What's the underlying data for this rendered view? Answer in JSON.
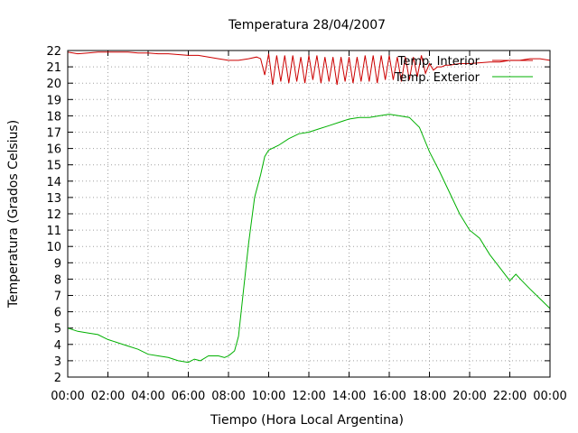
{
  "chart_data": {
    "type": "line",
    "title": "Temperatura 28/04/2007",
    "xlabel": "Tiempo (Hora Local Argentina)",
    "ylabel": "Temperatura (Grados Celsius)",
    "ylim": [
      2,
      22
    ],
    "xlim": [
      0,
      24
    ],
    "x_ticks": [
      "00:00",
      "02:00",
      "04:00",
      "06:00",
      "08:00",
      "10:00",
      "12:00",
      "14:00",
      "16:00",
      "18:00",
      "20:00",
      "22:00",
      "00:00"
    ],
    "y_ticks": [
      2,
      3,
      4,
      5,
      6,
      7,
      8,
      9,
      10,
      11,
      12,
      13,
      14,
      15,
      16,
      17,
      18,
      19,
      20,
      21,
      22
    ],
    "grid": true,
    "legend_position": "top-right",
    "series": [
      {
        "name": "Temp. Interior",
        "color": "#cc0000",
        "x": [
          0,
          0.5,
          1,
          1.5,
          2,
          2.5,
          3,
          3.5,
          4,
          4.5,
          5,
          5.5,
          6,
          6.5,
          7,
          7.5,
          8,
          8.5,
          9,
          9.4,
          9.6,
          9.8,
          10.0,
          10.2,
          10.4,
          10.6,
          10.8,
          11.0,
          11.2,
          11.4,
          11.6,
          11.8,
          12.0,
          12.2,
          12.4,
          12.6,
          12.8,
          13.0,
          13.2,
          13.4,
          13.6,
          13.8,
          14.0,
          14.2,
          14.4,
          14.6,
          14.8,
          15.0,
          15.2,
          15.4,
          15.6,
          15.8,
          16.0,
          16.2,
          16.4,
          16.6,
          16.8,
          17.0,
          17.2,
          17.4,
          17.6,
          17.8,
          18.0,
          18.2,
          18.4,
          18.6,
          18.8,
          19.0,
          19.5,
          20,
          20.5,
          21,
          21.5,
          22,
          22.5,
          23,
          23.5,
          24
        ],
        "y": [
          21.9,
          21.8,
          21.85,
          21.9,
          21.9,
          21.9,
          21.9,
          21.85,
          21.85,
          21.8,
          21.8,
          21.75,
          21.7,
          21.7,
          21.6,
          21.5,
          21.4,
          21.4,
          21.5,
          21.6,
          21.5,
          20.5,
          21.8,
          19.9,
          21.7,
          20.1,
          21.7,
          20.0,
          21.7,
          20.1,
          21.6,
          20.0,
          21.7,
          20.2,
          21.7,
          20.0,
          21.6,
          20.1,
          21.6,
          19.9,
          21.6,
          20.1,
          21.6,
          20.0,
          21.6,
          20.1,
          21.7,
          20.1,
          21.7,
          20.0,
          21.7,
          20.2,
          21.7,
          20.2,
          21.6,
          20.1,
          21.6,
          20.2,
          21.6,
          20.4,
          21.7,
          20.6,
          21.2,
          20.8,
          21.0,
          21.0,
          21.1,
          21.1,
          21.2,
          21.2,
          21.25,
          21.3,
          21.3,
          21.4,
          21.4,
          21.5,
          21.5,
          21.4
        ]
      },
      {
        "name": "Temp. Exterior",
        "color": "#00b000",
        "x": [
          0,
          0.5,
          1,
          1.5,
          2,
          2.5,
          3,
          3.5,
          4,
          4.5,
          5,
          5.5,
          6,
          6.3,
          6.6,
          7,
          7.5,
          7.8,
          8,
          8.3,
          8.5,
          8.7,
          9,
          9.3,
          9.6,
          9.8,
          10,
          10.5,
          11,
          11.5,
          12,
          12.5,
          13,
          13.5,
          14,
          14.5,
          15,
          15.5,
          16,
          16.5,
          17,
          17.5,
          18,
          18.5,
          19,
          19.5,
          20,
          20.5,
          21,
          21.5,
          22,
          22.3,
          22.6,
          23,
          23.5,
          24
        ],
        "y": [
          5.0,
          4.8,
          4.7,
          4.6,
          4.3,
          4.1,
          3.9,
          3.7,
          3.4,
          3.3,
          3.2,
          3.0,
          2.9,
          3.1,
          3.0,
          3.3,
          3.3,
          3.2,
          3.3,
          3.6,
          4.5,
          6.8,
          10.2,
          13.0,
          14.4,
          15.5,
          15.9,
          16.2,
          16.6,
          16.9,
          17.0,
          17.2,
          17.4,
          17.6,
          17.8,
          17.9,
          17.9,
          18.0,
          18.1,
          18.0,
          17.9,
          17.3,
          15.8,
          14.6,
          13.3,
          12.0,
          11.0,
          10.5,
          9.5,
          8.7,
          7.9,
          8.3,
          7.9,
          7.4,
          6.8,
          6.2
        ]
      }
    ]
  }
}
